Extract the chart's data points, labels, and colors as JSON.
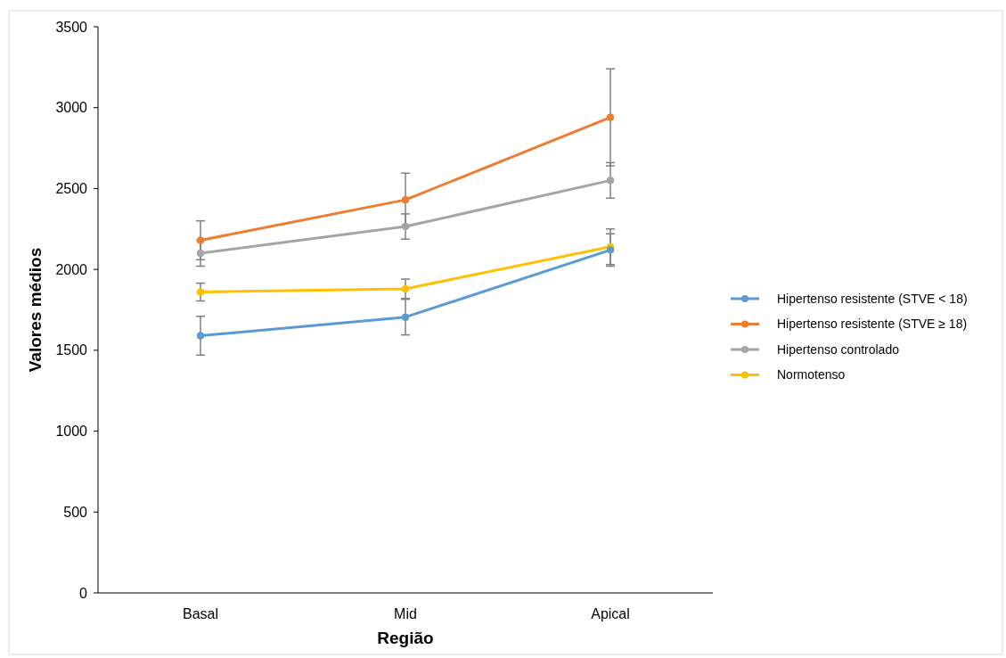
{
  "chart_data": {
    "type": "line",
    "xlabel": "Região",
    "ylabel": "Valores médios",
    "categories": [
      "Basal",
      "Mid",
      "Apical"
    ],
    "series": [
      {
        "name": "Hipertenso resistente (STVE < 18)",
        "color": "#5b9bd5",
        "values": [
          1590,
          1705,
          2120
        ],
        "errors": [
          120,
          110,
          100
        ]
      },
      {
        "name": "Hipertenso resistente (STVE ≥ 18)",
        "color": "#ed7d31",
        "values": [
          2180,
          2430,
          2940
        ],
        "errors": [
          120,
          165,
          300
        ]
      },
      {
        "name": "Hipertenso controlado",
        "color": "#a5a5a5",
        "values": [
          2100,
          2265,
          2550
        ],
        "errors": [
          80,
          78,
          110
        ]
      },
      {
        "name": "Normotenso",
        "color": "#ffc000",
        "values": [
          1860,
          1880,
          2140
        ],
        "errors": [
          55,
          60,
          110
        ]
      }
    ],
    "ylim": [
      0,
      3500
    ],
    "yticks": [
      0,
      500,
      1000,
      1500,
      2000,
      2500,
      3000,
      3500
    ],
    "grid": false,
    "legend": "right",
    "marker": "circle",
    "line_style": "solid"
  }
}
